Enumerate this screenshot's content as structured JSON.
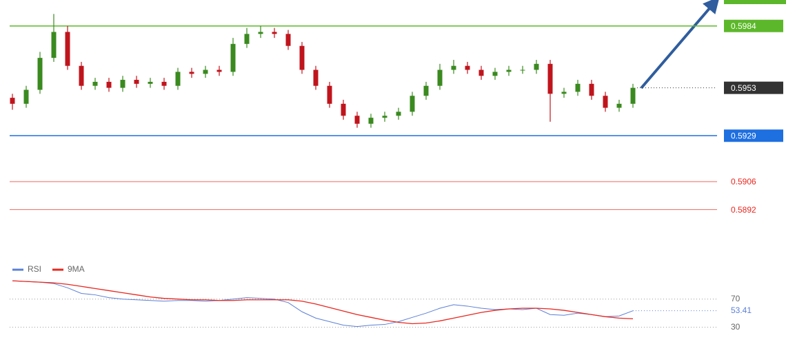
{
  "chart_data": [
    {
      "type": "candlestick",
      "open": [
        0.5948,
        0.5945,
        0.5952,
        0.5968,
        0.5981,
        0.5964,
        0.5954,
        0.5956,
        0.5953,
        0.5957,
        0.5955,
        0.5956,
        0.5954,
        0.5961,
        0.596,
        0.5962,
        0.5961,
        0.5975,
        0.598,
        0.5981,
        0.598,
        0.5974,
        0.5962,
        0.5954,
        0.5945,
        0.5939,
        0.5935,
        0.5938,
        0.5939,
        0.5941,
        0.5949,
        0.5954,
        0.5962,
        0.5964,
        0.5962,
        0.5959,
        0.5961,
        0.5962,
        0.5962,
        0.5965,
        0.595,
        0.5951,
        0.5955,
        0.5949,
        0.5943,
        0.5945
      ],
      "high": [
        0.595,
        0.5954,
        0.5971,
        0.599,
        0.5984,
        0.5966,
        0.5958,
        0.5958,
        0.5959,
        0.5959,
        0.5958,
        0.5958,
        0.5963,
        0.5963,
        0.5964,
        0.5964,
        0.5978,
        0.5983,
        0.5984,
        0.5983,
        0.5982,
        0.5976,
        0.5964,
        0.5956,
        0.5947,
        0.5941,
        0.594,
        0.5941,
        0.5943,
        0.5951,
        0.5956,
        0.5965,
        0.5967,
        0.5966,
        0.5964,
        0.5963,
        0.5964,
        0.5964,
        0.5967,
        0.5967,
        0.5953,
        0.5957,
        0.5957,
        0.5951,
        0.5947,
        0.5955
      ],
      "low": [
        0.5942,
        0.5943,
        0.595,
        0.5966,
        0.5962,
        0.5952,
        0.5952,
        0.5951,
        0.5951,
        0.5953,
        0.5953,
        0.5952,
        0.5952,
        0.5958,
        0.5958,
        0.5959,
        0.5959,
        0.5973,
        0.5978,
        0.5978,
        0.5972,
        0.596,
        0.5952,
        0.5943,
        0.5937,
        0.5933,
        0.5933,
        0.5936,
        0.5937,
        0.5939,
        0.5947,
        0.5952,
        0.596,
        0.596,
        0.5957,
        0.5957,
        0.5959,
        0.596,
        0.596,
        0.5936,
        0.5948,
        0.5949,
        0.5947,
        0.5941,
        0.5941,
        0.5943
      ],
      "close": [
        0.5945,
        0.5952,
        0.5968,
        0.5981,
        0.5964,
        0.5954,
        0.5956,
        0.5953,
        0.5957,
        0.5955,
        0.5956,
        0.5954,
        0.5961,
        0.596,
        0.5962,
        0.5961,
        0.5975,
        0.598,
        0.5981,
        0.598,
        0.5974,
        0.5962,
        0.5954,
        0.5945,
        0.5939,
        0.5935,
        0.5938,
        0.5939,
        0.5941,
        0.5949,
        0.5954,
        0.5962,
        0.5964,
        0.5962,
        0.5959,
        0.5961,
        0.5962,
        0.5962,
        0.5965,
        0.595,
        0.5951,
        0.5955,
        0.5949,
        0.5943,
        0.5945,
        0.5953
      ],
      "up_color": "#3a8a1f",
      "down_color": "#c0141c",
      "ylim": [
        0.5866,
        0.5997
      ],
      "levels": [
        {
          "value": 0.5984,
          "color": "#5cb82a",
          "style": "box"
        },
        {
          "value": 0.5929,
          "color": "#1e6fe0",
          "style": "box"
        },
        {
          "value": 0.5906,
          "color": "#e8261e",
          "style": "text"
        },
        {
          "value": 0.5892,
          "color": "#e8261e",
          "style": "text"
        }
      ],
      "last_color": "#333333"
    },
    {
      "type": "line",
      "series": [
        {
          "name": "RSI",
          "color": "#5b7fd6",
          "values": [
            96,
            95,
            94,
            92,
            86,
            78,
            76,
            72,
            70,
            69,
            68,
            67,
            68,
            68,
            67,
            68,
            70,
            72,
            71,
            70,
            65,
            52,
            43,
            38,
            33,
            31,
            33,
            34,
            38,
            44,
            50,
            57,
            62,
            60,
            57,
            55,
            56,
            55,
            57,
            48,
            47,
            50,
            48,
            45,
            46,
            53.41
          ]
        },
        {
          "name": "9MA",
          "color": "#e8261e",
          "values": [
            96,
            95,
            94,
            93,
            91,
            88,
            85,
            82,
            79,
            76,
            73,
            71,
            70,
            69,
            69,
            68,
            68,
            69,
            69,
            69,
            69,
            67,
            63,
            58,
            53,
            48,
            44,
            40,
            37,
            35,
            36,
            39,
            43,
            47,
            51,
            54,
            56,
            57,
            57,
            56,
            54,
            51,
            48,
            45,
            43,
            42
          ]
        }
      ],
      "ylim": [
        15,
        100
      ],
      "yticks": [
        70,
        30
      ]
    }
  ]
}
